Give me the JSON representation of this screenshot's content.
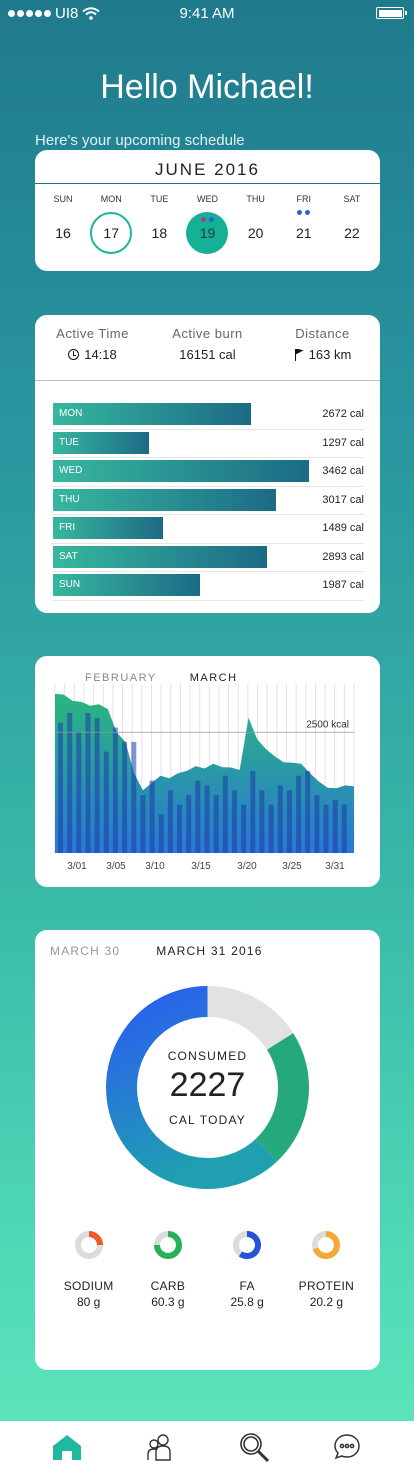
{
  "status": {
    "carrier": "UI8",
    "time": "9:41 AM"
  },
  "greeting": "Hello Michael!",
  "subtitle": "Here's your upcoming schedule",
  "calendar": {
    "month": "JUNE 2016",
    "days": [
      {
        "dow": "SUN",
        "num": "16",
        "state": "normal",
        "dots": []
      },
      {
        "dow": "MON",
        "num": "17",
        "state": "ring",
        "dots": []
      },
      {
        "dow": "TUE",
        "num": "18",
        "state": "normal",
        "dots": []
      },
      {
        "dow": "WED",
        "num": "19",
        "state": "selected",
        "dots": [
          "#b23a8c",
          "#2f5fd0"
        ]
      },
      {
        "dow": "THU",
        "num": "20",
        "state": "normal",
        "dots": []
      },
      {
        "dow": "FRI",
        "num": "21",
        "state": "normal",
        "dots": [
          "#2f5fd0",
          "#2f5fd0"
        ]
      },
      {
        "dow": "SAT",
        "num": "22",
        "state": "normal",
        "dots": []
      }
    ]
  },
  "activity": {
    "stats": [
      {
        "label": "Active Time",
        "value": "14:18",
        "icon": "clock-icon"
      },
      {
        "label": "Active burn",
        "value": "16151 cal",
        "icon": ""
      },
      {
        "label": "Distance",
        "value": "163 km",
        "icon": "flag-icon"
      }
    ],
    "days": [
      {
        "day": "MON",
        "cal": "2672 cal",
        "value": 2672
      },
      {
        "day": "TUE",
        "cal": "1297 cal",
        "value": 1297
      },
      {
        "day": "WED",
        "cal": "3462 cal",
        "value": 3462
      },
      {
        "day": "THU",
        "cal": "3017 cal",
        "value": 3017
      },
      {
        "day": "FRI",
        "cal": "1489 cal",
        "value": 1489
      },
      {
        "day": "SAT",
        "cal": "2893 cal",
        "value": 2893
      },
      {
        "day": "SUN",
        "cal": "1987 cal",
        "value": 1987
      }
    ]
  },
  "chart_data": {
    "type": "area",
    "tabs": [
      "FEBRUARY",
      "MARCH"
    ],
    "active_tab": "MARCH",
    "x_ticks": [
      "3/01",
      "3/05",
      "3/10",
      "3/15",
      "3/20",
      "3/25",
      "3/31"
    ],
    "reference_label": "2500 kcal",
    "reference_value": 2500,
    "ylim": [
      0,
      3500
    ],
    "area_values": [
      3300,
      3280,
      3150,
      3130,
      3050,
      3080,
      2980,
      2500,
      2300,
      1650,
      1300,
      1450,
      1600,
      1550,
      1650,
      1700,
      1800,
      1750,
      1850,
      1780,
      1770,
      1720,
      2800,
      2350,
      2150,
      2000,
      1880,
      1870,
      1850,
      1650,
      1480,
      1350,
      1340,
      1400,
      1380
    ],
    "bar_values": [
      2700,
      2900,
      2500,
      2900,
      2800,
      2100,
      2600,
      2300,
      2300,
      1200,
      1500,
      800,
      1300,
      1000,
      1200,
      1500,
      1400,
      1200,
      1600,
      1300,
      1000,
      1700,
      1300,
      1000,
      1400,
      1300,
      1600,
      1700,
      1200,
      1000,
      1100,
      1000
    ],
    "colors": {
      "area_top": "#2bb67c",
      "area_bottom": "#2a78d4",
      "bars": "#1a3da8"
    }
  },
  "nutrition": {
    "tabs": [
      "MARCH 30",
      "MARCH 31 2016"
    ],
    "active_tab": "MARCH 31 2016",
    "consumed_label": "CONSUMED",
    "consumed_value": "2227",
    "cal_today_label": "CAL TODAY",
    "donut": [
      {
        "name": "",
        "fraction": 0.62,
        "color": "#2a6ee0"
      },
      {
        "name": "",
        "fraction": 0.22,
        "color": "#25a87a"
      },
      {
        "name": "",
        "fraction": 0.16,
        "color": "#e2e2e2"
      }
    ],
    "nutrients": [
      {
        "name": "SODIUM",
        "value": "80 g",
        "fraction": 0.25,
        "color": "#f05a28"
      },
      {
        "name": "CARB",
        "value": "60.3 g",
        "fraction": 0.75,
        "color": "#25b05a"
      },
      {
        "name": "FA",
        "value": "25.8 g",
        "fraction": 0.6,
        "color": "#2455d8"
      },
      {
        "name": "PROTEIN",
        "value": "20.2 g",
        "fraction": 0.7,
        "color": "#f7a735"
      }
    ]
  },
  "tabbar": [
    "home-icon",
    "people-icon",
    "search-icon",
    "chat-icon"
  ]
}
